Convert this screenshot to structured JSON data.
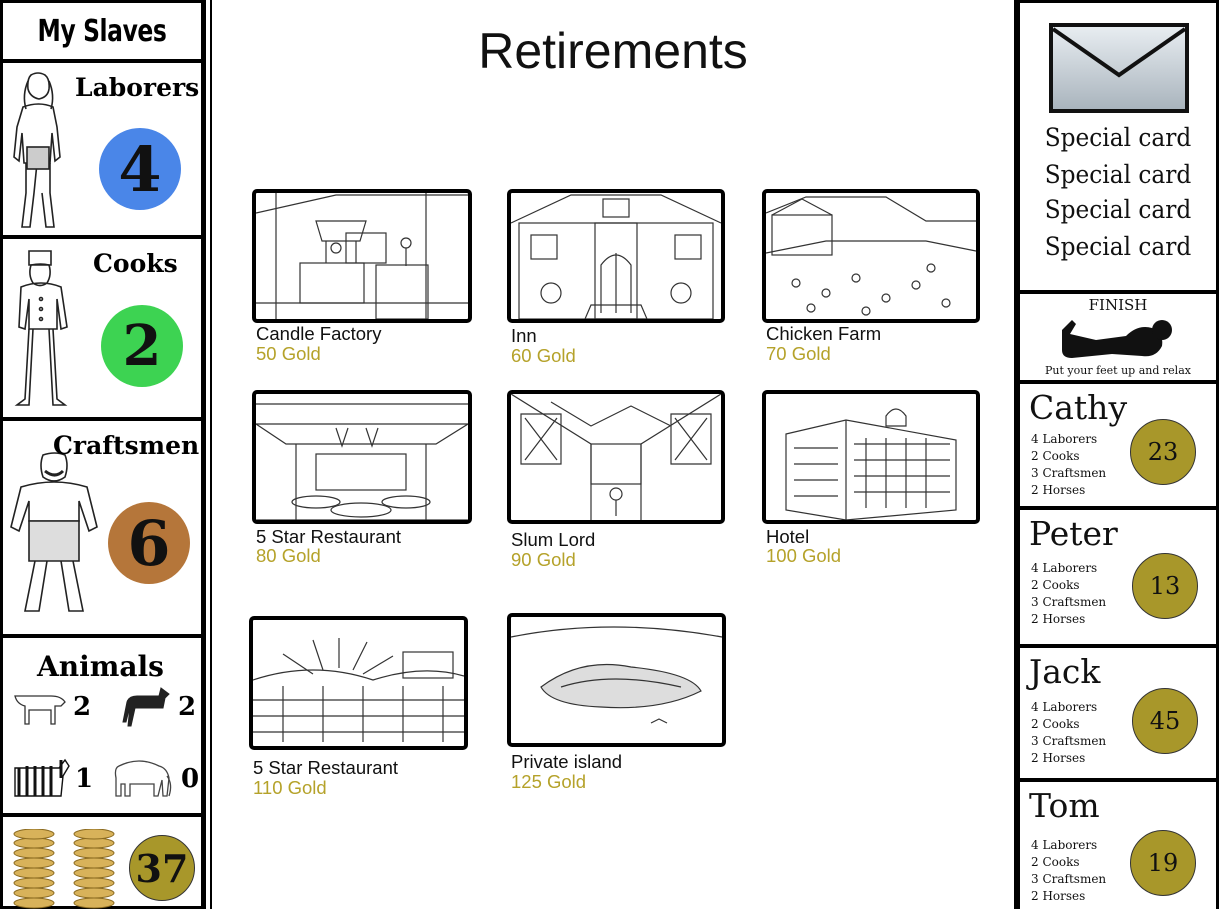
{
  "left": {
    "title": "My Slaves",
    "laborers": {
      "label": "Laborers",
      "count": "4",
      "color": "#4a86e8"
    },
    "cooks": {
      "label": "Cooks",
      "count": "2",
      "color": "#3dd352"
    },
    "craftsmen": {
      "label": "Craftsmen",
      "count": "6",
      "color": "#b5763a"
    },
    "animals": {
      "label": "Animals",
      "cow": "2",
      "horse": "2",
      "zebra": "1",
      "elephant": "0"
    },
    "gold": {
      "amount": "37",
      "color": "#a8972a"
    }
  },
  "main": {
    "title": "Retirements",
    "cards": [
      {
        "name": "Candle Factory",
        "price": "50 Gold",
        "icon": "factory-illustration"
      },
      {
        "name": "Inn",
        "price": "60 Gold",
        "icon": "inn-illustration"
      },
      {
        "name": "Chicken Farm",
        "price": "70 Gold",
        "icon": "farm-illustration"
      },
      {
        "name": "5 Star Restaurant",
        "price": "80 Gold",
        "icon": "restaurant-illustration"
      },
      {
        "name": "Slum Lord",
        "price": "90 Gold",
        "icon": "alley-illustration"
      },
      {
        "name": "Hotel",
        "price": "100 Gold",
        "icon": "hotel-illustration"
      },
      {
        "name": "5 Star Restaurant",
        "price": "110 Gold",
        "icon": "vineyard-illustration"
      },
      {
        "name": "Private island",
        "price": "125 Gold",
        "icon": "island-illustration"
      }
    ]
  },
  "right": {
    "special_cards": [
      "Special card",
      "Special card",
      "Special card",
      "Special card"
    ],
    "finish": {
      "title": "FINISH",
      "caption": "Put your feet up and relax"
    },
    "players": [
      {
        "name": "Cathy",
        "stats": [
          "4 Laborers",
          "2 Cooks",
          "3 Craftsmen",
          "2 Horses"
        ],
        "gold": "23"
      },
      {
        "name": "Peter",
        "stats": [
          "4 Laborers",
          "2 Cooks",
          "3 Craftsmen",
          "2 Horses"
        ],
        "gold": "13"
      },
      {
        "name": "Jack",
        "stats": [
          "4 Laborers",
          "2 Cooks",
          "3 Craftsmen",
          "2 Horses"
        ],
        "gold": "45"
      },
      {
        "name": "Tom",
        "stats": [
          "4 Laborers",
          "2 Cooks",
          "3 Craftsmen",
          "2 Horses"
        ],
        "gold": "19"
      }
    ]
  }
}
